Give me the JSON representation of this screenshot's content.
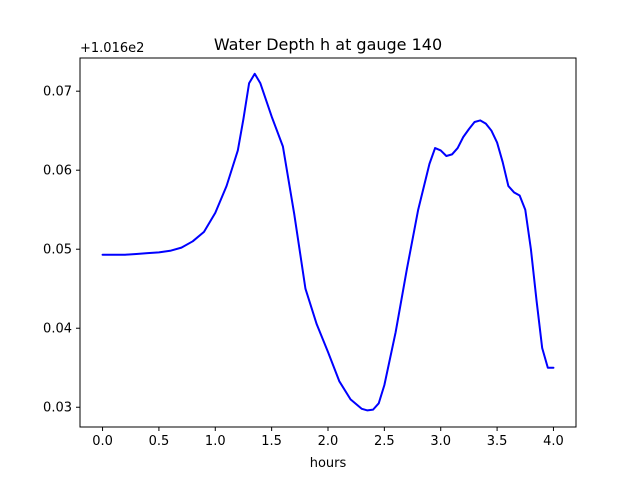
{
  "chart_data": {
    "type": "line",
    "title": "Water Depth h at gauge 140",
    "xlabel": "hours",
    "ylabel": "",
    "offset_label": "+1.016e2",
    "xlim": [
      -0.2,
      4.2
    ],
    "ylim": [
      0.0275,
      0.0742
    ],
    "xticks": [
      0.0,
      0.5,
      1.0,
      1.5,
      2.0,
      2.5,
      3.0,
      3.5,
      4.0
    ],
    "xtick_labels": [
      "0.0",
      "0.5",
      "1.0",
      "1.5",
      "2.0",
      "2.5",
      "3.0",
      "3.5",
      "4.0"
    ],
    "yticks": [
      0.03,
      0.04,
      0.05,
      0.06,
      0.07
    ],
    "ytick_labels": [
      "0.03",
      "0.04",
      "0.05",
      "0.06",
      "0.07"
    ],
    "grid": false,
    "series": [
      {
        "color": "#0000ff",
        "x": [
          0.0,
          0.1,
          0.2,
          0.3,
          0.4,
          0.5,
          0.6,
          0.7,
          0.8,
          0.9,
          1.0,
          1.1,
          1.2,
          1.25,
          1.3,
          1.35,
          1.4,
          1.5,
          1.6,
          1.7,
          1.8,
          1.9,
          2.0,
          2.1,
          2.2,
          2.3,
          2.35,
          2.4,
          2.45,
          2.5,
          2.6,
          2.7,
          2.8,
          2.9,
          2.95,
          3.0,
          3.05,
          3.1,
          3.15,
          3.2,
          3.25,
          3.3,
          3.35,
          3.4,
          3.45,
          3.5,
          3.55,
          3.6,
          3.65,
          3.7,
          3.75,
          3.8,
          3.85,
          3.9,
          3.95,
          4.0
        ],
        "y": [
          0.0493,
          0.0493,
          0.0493,
          0.0494,
          0.0495,
          0.0496,
          0.0498,
          0.0502,
          0.051,
          0.0522,
          0.0546,
          0.058,
          0.0625,
          0.0665,
          0.071,
          0.0722,
          0.071,
          0.0668,
          0.063,
          0.0545,
          0.045,
          0.0405,
          0.037,
          0.0333,
          0.031,
          0.0298,
          0.0296,
          0.0297,
          0.0305,
          0.0328,
          0.0395,
          0.0475,
          0.055,
          0.0608,
          0.0628,
          0.0625,
          0.0618,
          0.062,
          0.0628,
          0.0642,
          0.0652,
          0.0661,
          0.0663,
          0.0659,
          0.065,
          0.0635,
          0.061,
          0.058,
          0.0572,
          0.0568,
          0.055,
          0.05,
          0.0435,
          0.0375,
          0.035,
          0.035
        ]
      }
    ]
  }
}
